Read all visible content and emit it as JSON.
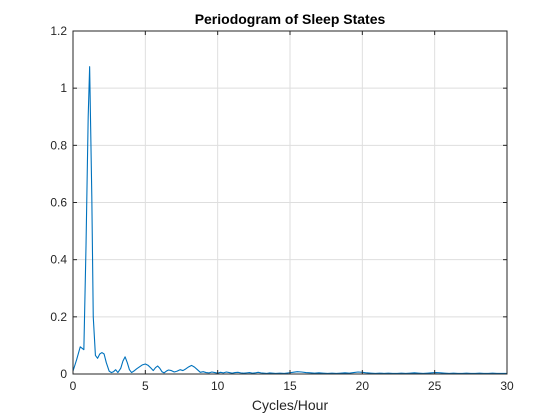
{
  "chart_data": {
    "type": "line",
    "title": "Periodogram of Sleep States",
    "xlabel": "Cycles/Hour",
    "ylabel": "",
    "xlim": [
      0,
      30
    ],
    "ylim": [
      0,
      1.2
    ],
    "xticks": [
      0,
      5,
      10,
      15,
      20,
      25,
      30
    ],
    "xtick_labels": [
      "0",
      "5",
      "10",
      "15",
      "20",
      "25",
      "30"
    ],
    "yticks": [
      0,
      0.2,
      0.4,
      0.6,
      0.8,
      1,
      1.2
    ],
    "ytick_labels": [
      "0",
      "0.2",
      "0.4",
      "0.6",
      "0.8",
      "1",
      "1.2"
    ],
    "grid": true,
    "series_color": "#0072bd",
    "series": [
      {
        "x": [
          0,
          0.25,
          0.5,
          0.75,
          0.9,
          1.05,
          1.15,
          1.3,
          1.4,
          1.55,
          1.7,
          1.85,
          2.0,
          2.15,
          2.3,
          2.5,
          2.65,
          2.8,
          2.95,
          3.1,
          3.3,
          3.45,
          3.6,
          3.75,
          3.9,
          4.05,
          4.2,
          4.4,
          4.6,
          4.8,
          5.0,
          5.2,
          5.4,
          5.55,
          5.7,
          5.85,
          6.0,
          6.15,
          6.3,
          6.45,
          6.6,
          6.8,
          7.0,
          7.2,
          7.4,
          7.6,
          7.8,
          8.0,
          8.2,
          8.4,
          8.6,
          8.8,
          9.0,
          9.2,
          9.4,
          9.6,
          9.8,
          10.0,
          10.2,
          10.4,
          10.6,
          10.8,
          11.0,
          11.2,
          11.4,
          11.6,
          11.8,
          12.0,
          12.2,
          12.4,
          12.6,
          12.8,
          13.0,
          13.2,
          13.4,
          13.6,
          13.8,
          14.0,
          14.3,
          14.6,
          14.9,
          15.2,
          15.5,
          15.8,
          16.1,
          16.4,
          16.7,
          17.0,
          17.3,
          17.6,
          17.9,
          18.2,
          18.5,
          18.8,
          19.1,
          19.4,
          19.7,
          20.0,
          20.3,
          20.6,
          20.9,
          21.2,
          21.5,
          21.8,
          22.1,
          22.4,
          22.7,
          23.0,
          23.3,
          23.6,
          23.9,
          24.2,
          24.5,
          24.8,
          25.1,
          25.4,
          25.7,
          26.0,
          26.3,
          26.6,
          26.9,
          27.2,
          27.5,
          27.8,
          28.1,
          28.4,
          28.7,
          29.0,
          29.3,
          29.6,
          30.0
        ],
        "y": [
          0.01,
          0.05,
          0.095,
          0.085,
          0.45,
          0.9,
          1.075,
          0.62,
          0.2,
          0.065,
          0.055,
          0.07,
          0.075,
          0.07,
          0.04,
          0.01,
          0.005,
          0.008,
          0.015,
          0.005,
          0.02,
          0.045,
          0.06,
          0.04,
          0.015,
          0.005,
          0.01,
          0.018,
          0.025,
          0.032,
          0.035,
          0.03,
          0.02,
          0.012,
          0.022,
          0.028,
          0.02,
          0.008,
          0.004,
          0.01,
          0.014,
          0.012,
          0.007,
          0.01,
          0.015,
          0.012,
          0.018,
          0.025,
          0.03,
          0.024,
          0.015,
          0.006,
          0.008,
          0.005,
          0.004,
          0.007,
          0.005,
          0.003,
          0.006,
          0.004,
          0.007,
          0.005,
          0.003,
          0.005,
          0.006,
          0.004,
          0.003,
          0.004,
          0.005,
          0.003,
          0.004,
          0.006,
          0.004,
          0.003,
          0.002,
          0.004,
          0.003,
          0.002,
          0.003,
          0.002,
          0.004,
          0.006,
          0.008,
          0.007,
          0.005,
          0.004,
          0.003,
          0.004,
          0.003,
          0.002,
          0.003,
          0.002,
          0.003,
          0.004,
          0.003,
          0.005,
          0.007,
          0.006,
          0.004,
          0.003,
          0.002,
          0.003,
          0.002,
          0.003,
          0.002,
          0.002,
          0.003,
          0.002,
          0.003,
          0.004,
          0.003,
          0.002,
          0.003,
          0.004,
          0.005,
          0.004,
          0.003,
          0.002,
          0.003,
          0.002,
          0.002,
          0.003,
          0.002,
          0.002,
          0.003,
          0.002,
          0.002,
          0.003,
          0.002,
          0.002,
          0.002
        ]
      }
    ]
  }
}
